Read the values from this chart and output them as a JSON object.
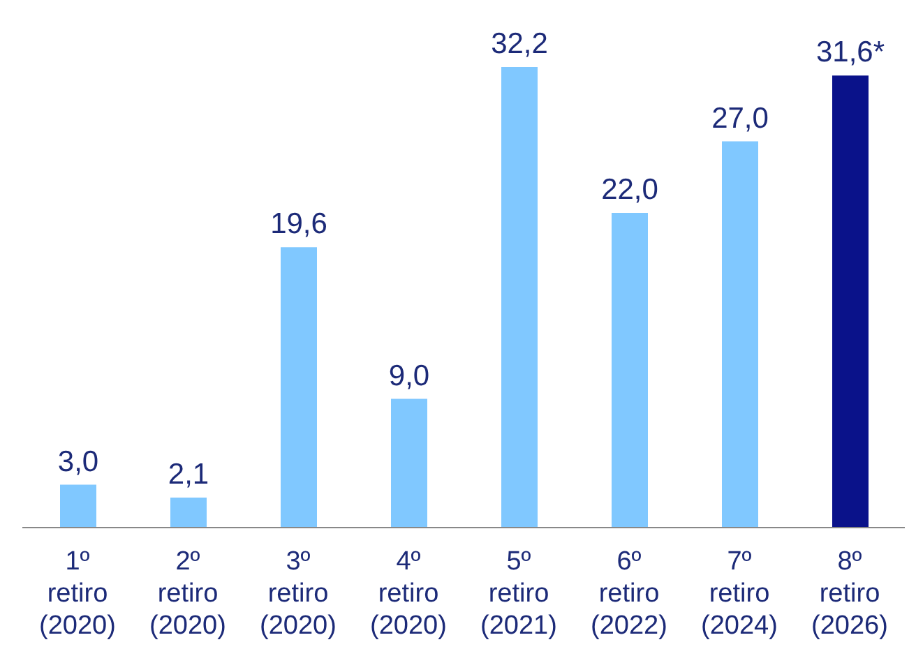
{
  "chart_data": {
    "type": "bar",
    "categories": [
      "1º retiro (2020)",
      "2º retiro (2020)",
      "3º retiro (2020)",
      "4º retiro (2020)",
      "5º retiro (2021)",
      "6º retiro (2022)",
      "7º retiro (2024)",
      "8º retiro (2026)"
    ],
    "values": [
      3.0,
      2.1,
      19.6,
      9.0,
      32.2,
      22.0,
      27.0,
      31.6
    ],
    "colors": [
      "#80c8ff",
      "#80c8ff",
      "#80c8ff",
      "#80c8ff",
      "#80c8ff",
      "#80c8ff",
      "#80c8ff",
      "#0a128a"
    ],
    "value_labels": [
      "3,0",
      "2,1",
      "19,6",
      "9,0",
      "32,2",
      "22,0",
      "27,0",
      "31,6*"
    ],
    "grid": false,
    "legend": false
  }
}
